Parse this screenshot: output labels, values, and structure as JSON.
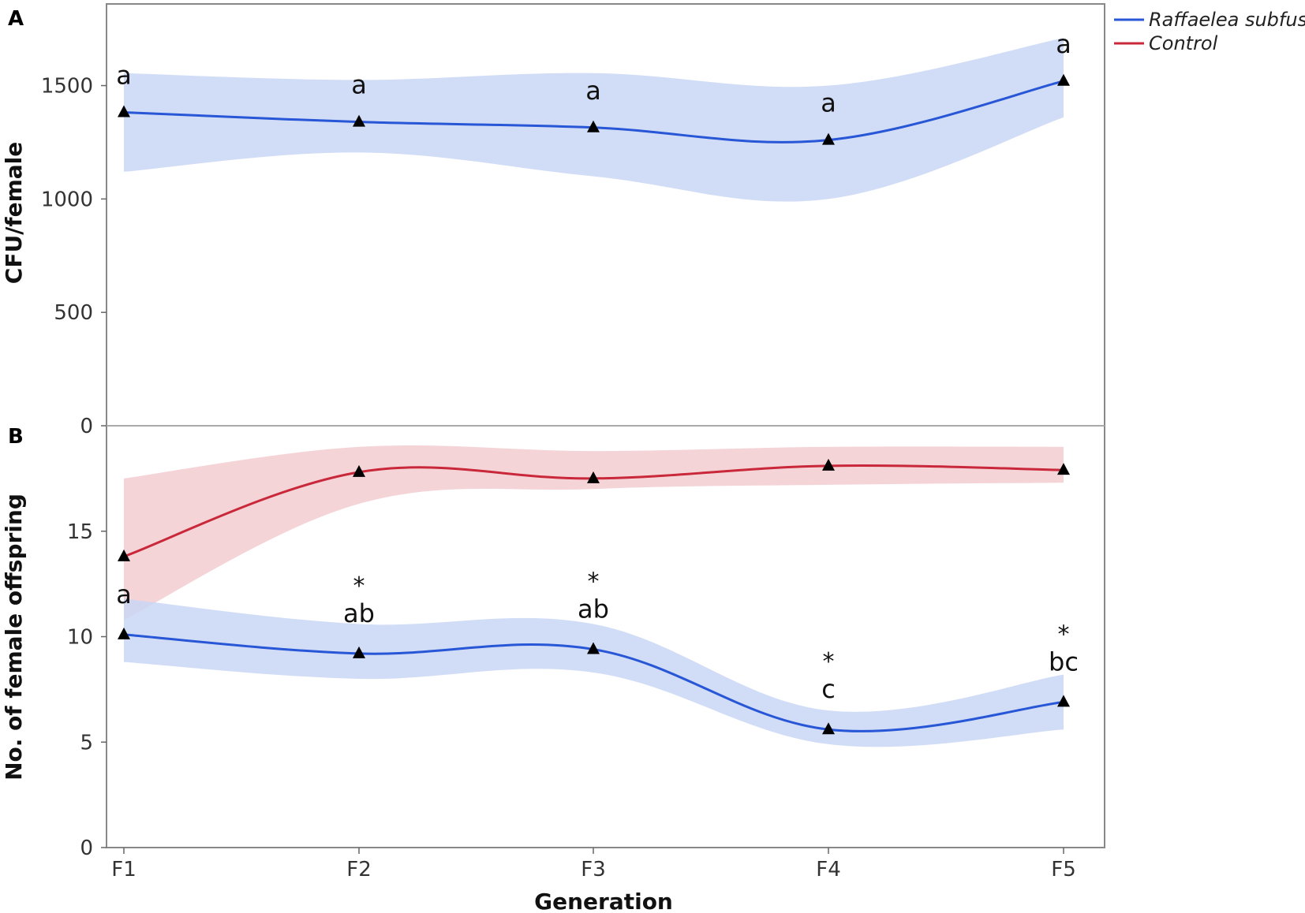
{
  "chart_data": [
    {
      "panel": "A",
      "type": "line",
      "ylabel": "CFU/female",
      "xlabel": "",
      "ylim": [
        0,
        1860
      ],
      "yticks": [
        0,
        500,
        1000,
        1500
      ],
      "categories": [
        "F1",
        "F2",
        "F3",
        "F4",
        "F5"
      ],
      "series": [
        {
          "name": "Raffaelea subfusca",
          "color": "#2756d6",
          "band_color": "#c9d6f5",
          "values": [
            1382,
            1340,
            1315,
            1260,
            1520
          ],
          "band_upper": [
            1555,
            1525,
            1555,
            1500,
            1710
          ],
          "band_lower": [
            1120,
            1205,
            1100,
            1000,
            1360
          ],
          "letters": [
            "a",
            "a",
            "a",
            "a",
            "a"
          ]
        }
      ]
    },
    {
      "panel": "B",
      "type": "line",
      "ylabel": "No. of female offspring",
      "xlabel": "Generation",
      "ylim": [
        0,
        20
      ],
      "yticks": [
        0,
        5,
        10,
        15
      ],
      "categories": [
        "F1",
        "F2",
        "F3",
        "F4",
        "F5"
      ],
      "series": [
        {
          "name": "Control",
          "color": "#c9283a",
          "band_color": "#f3cdd1",
          "values": [
            13.8,
            17.8,
            17.5,
            18.1,
            17.9
          ],
          "band_upper": [
            17.5,
            19.0,
            18.8,
            19.0,
            19.0
          ],
          "band_lower": [
            10.8,
            16.3,
            17.0,
            17.2,
            17.3
          ]
        },
        {
          "name": "Raffaelea subfusca",
          "color": "#2756d6",
          "band_color": "#c9d6f5",
          "values": [
            10.1,
            9.2,
            9.4,
            5.6,
            6.9
          ],
          "band_upper": [
            11.8,
            10.6,
            10.6,
            6.5,
            8.2
          ],
          "band_lower": [
            8.8,
            8.0,
            8.3,
            4.9,
            5.6
          ],
          "letters": [
            "a",
            "ab",
            "ab",
            "c",
            "bc"
          ],
          "significance": [
            "",
            "*",
            "*",
            "*",
            "*"
          ]
        }
      ]
    }
  ],
  "legend": [
    {
      "label": "Raffaelea subfusca",
      "color": "#2756d6"
    },
    {
      "label": "Control",
      "color": "#c9283a"
    }
  ]
}
